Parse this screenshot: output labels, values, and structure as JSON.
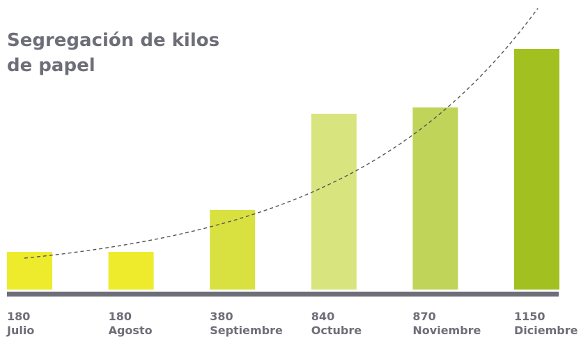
{
  "chart_data": {
    "type": "bar",
    "title": "Segregación de kilos de papel",
    "categories": [
      "Julio",
      "Agosto",
      "Septiembre",
      "Octubre",
      "Noviembre",
      "Diciembre"
    ],
    "values": [
      180,
      180,
      380,
      840,
      870,
      1150
    ],
    "value_labels": [
      "180",
      "180",
      "380",
      "840",
      "870",
      "1150"
    ],
    "bar_colors": [
      "#eeeb2d",
      "#eeeb2d",
      "#d8e140",
      "#d8e47e",
      "#c0d45a",
      "#a2c120"
    ],
    "axis_color": "#6e6e78",
    "trendline": {
      "style": "dashed",
      "color": "#555555",
      "kind": "exponential"
    },
    "xlabel": "",
    "ylabel": "",
    "legend": "none",
    "grid": false
  }
}
